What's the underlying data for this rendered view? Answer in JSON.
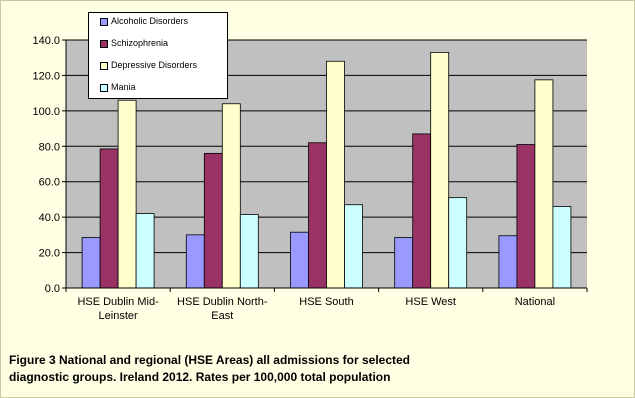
{
  "caption": {
    "line1": "Figure 3   National and regional (HSE Areas) all admissions for selected",
    "line2": "diagnostic groups.  Ireland 2012.  Rates per 100,000 total population"
  },
  "chart_data": {
    "type": "bar",
    "categories": [
      [
        "HSE Dublin Mid-",
        "Leinster"
      ],
      [
        "HSE Dublin North-",
        "East"
      ],
      [
        "HSE South"
      ],
      [
        "HSE West"
      ],
      [
        "National"
      ]
    ],
    "series": [
      {
        "name": "Alcoholic Disorders",
        "color": "#9999ff",
        "values": [
          28.5,
          30.0,
          31.5,
          28.5,
          29.5
        ]
      },
      {
        "name": "Schizophrenia",
        "color": "#993366",
        "values": [
          78.5,
          76.0,
          82.0,
          87.0,
          81.0
        ]
      },
      {
        "name": "Depressive Disorders",
        "color": "#ffffcc",
        "values": [
          106.0,
          104.0,
          128.0,
          133.0,
          117.5
        ]
      },
      {
        "name": "Mania",
        "color": "#ccffff",
        "values": [
          42.0,
          41.5,
          47.0,
          51.0,
          46.0
        ]
      }
    ],
    "ylim": [
      0,
      140
    ],
    "yticks": [
      "0.0",
      "20.0",
      "40.0",
      "60.0",
      "80.0",
      "100.0",
      "120.0",
      "140.0"
    ],
    "grid": true,
    "plot_background": "#c0c0c0",
    "legend_position": "top-left"
  }
}
